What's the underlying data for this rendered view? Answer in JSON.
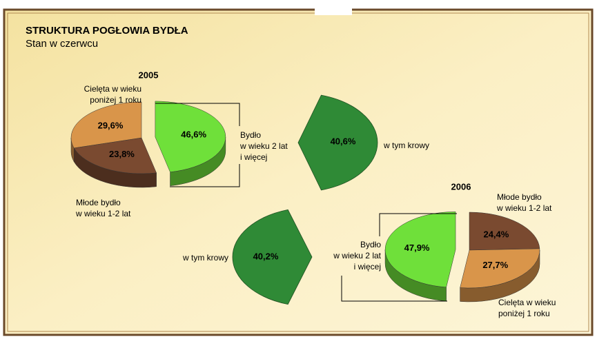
{
  "header": {
    "title": "STRUKTURA POGŁOWIA BYDŁA",
    "subtitle": "Stan w czerwcu"
  },
  "chart_data": [
    {
      "type": "pie",
      "title": "2005",
      "categories": [
        [
          "Bydło",
          "w wieku 2 lat",
          "i więcej"
        ],
        [
          "Młode bydło",
          "w wieku 1-2 lat"
        ],
        [
          "Cielęta w wieku",
          "poniżej 1 roku"
        ]
      ],
      "values": [
        46.6,
        23.8,
        29.6
      ],
      "value_labels": [
        "46,6%",
        "23,8%",
        "29,6%"
      ],
      "colors": [
        "#6fe03a",
        "#7a4a30",
        "#d9954a"
      ],
      "detail": {
        "label": "w tym krowy",
        "value": 40.6,
        "value_label": "40,6%",
        "color": "#2f8a36"
      }
    },
    {
      "type": "pie",
      "title": "2006",
      "categories": [
        [
          "Młode bydło",
          "w wieku 1-2 lat"
        ],
        [
          "Cielęta w wieku",
          "poniżej 1 roku"
        ],
        [
          "Bydło",
          "w wieku 2 lat",
          "i więcej"
        ]
      ],
      "values": [
        24.4,
        27.7,
        47.9
      ],
      "value_labels": [
        "24,4%",
        "27,7%",
        "47,9%"
      ],
      "colors": [
        "#7a4a30",
        "#d9954a",
        "#6fe03a"
      ],
      "detail": {
        "label": "w tym krowy",
        "value": 40.2,
        "value_label": "40,2%",
        "color": "#2f8a36"
      }
    }
  ]
}
